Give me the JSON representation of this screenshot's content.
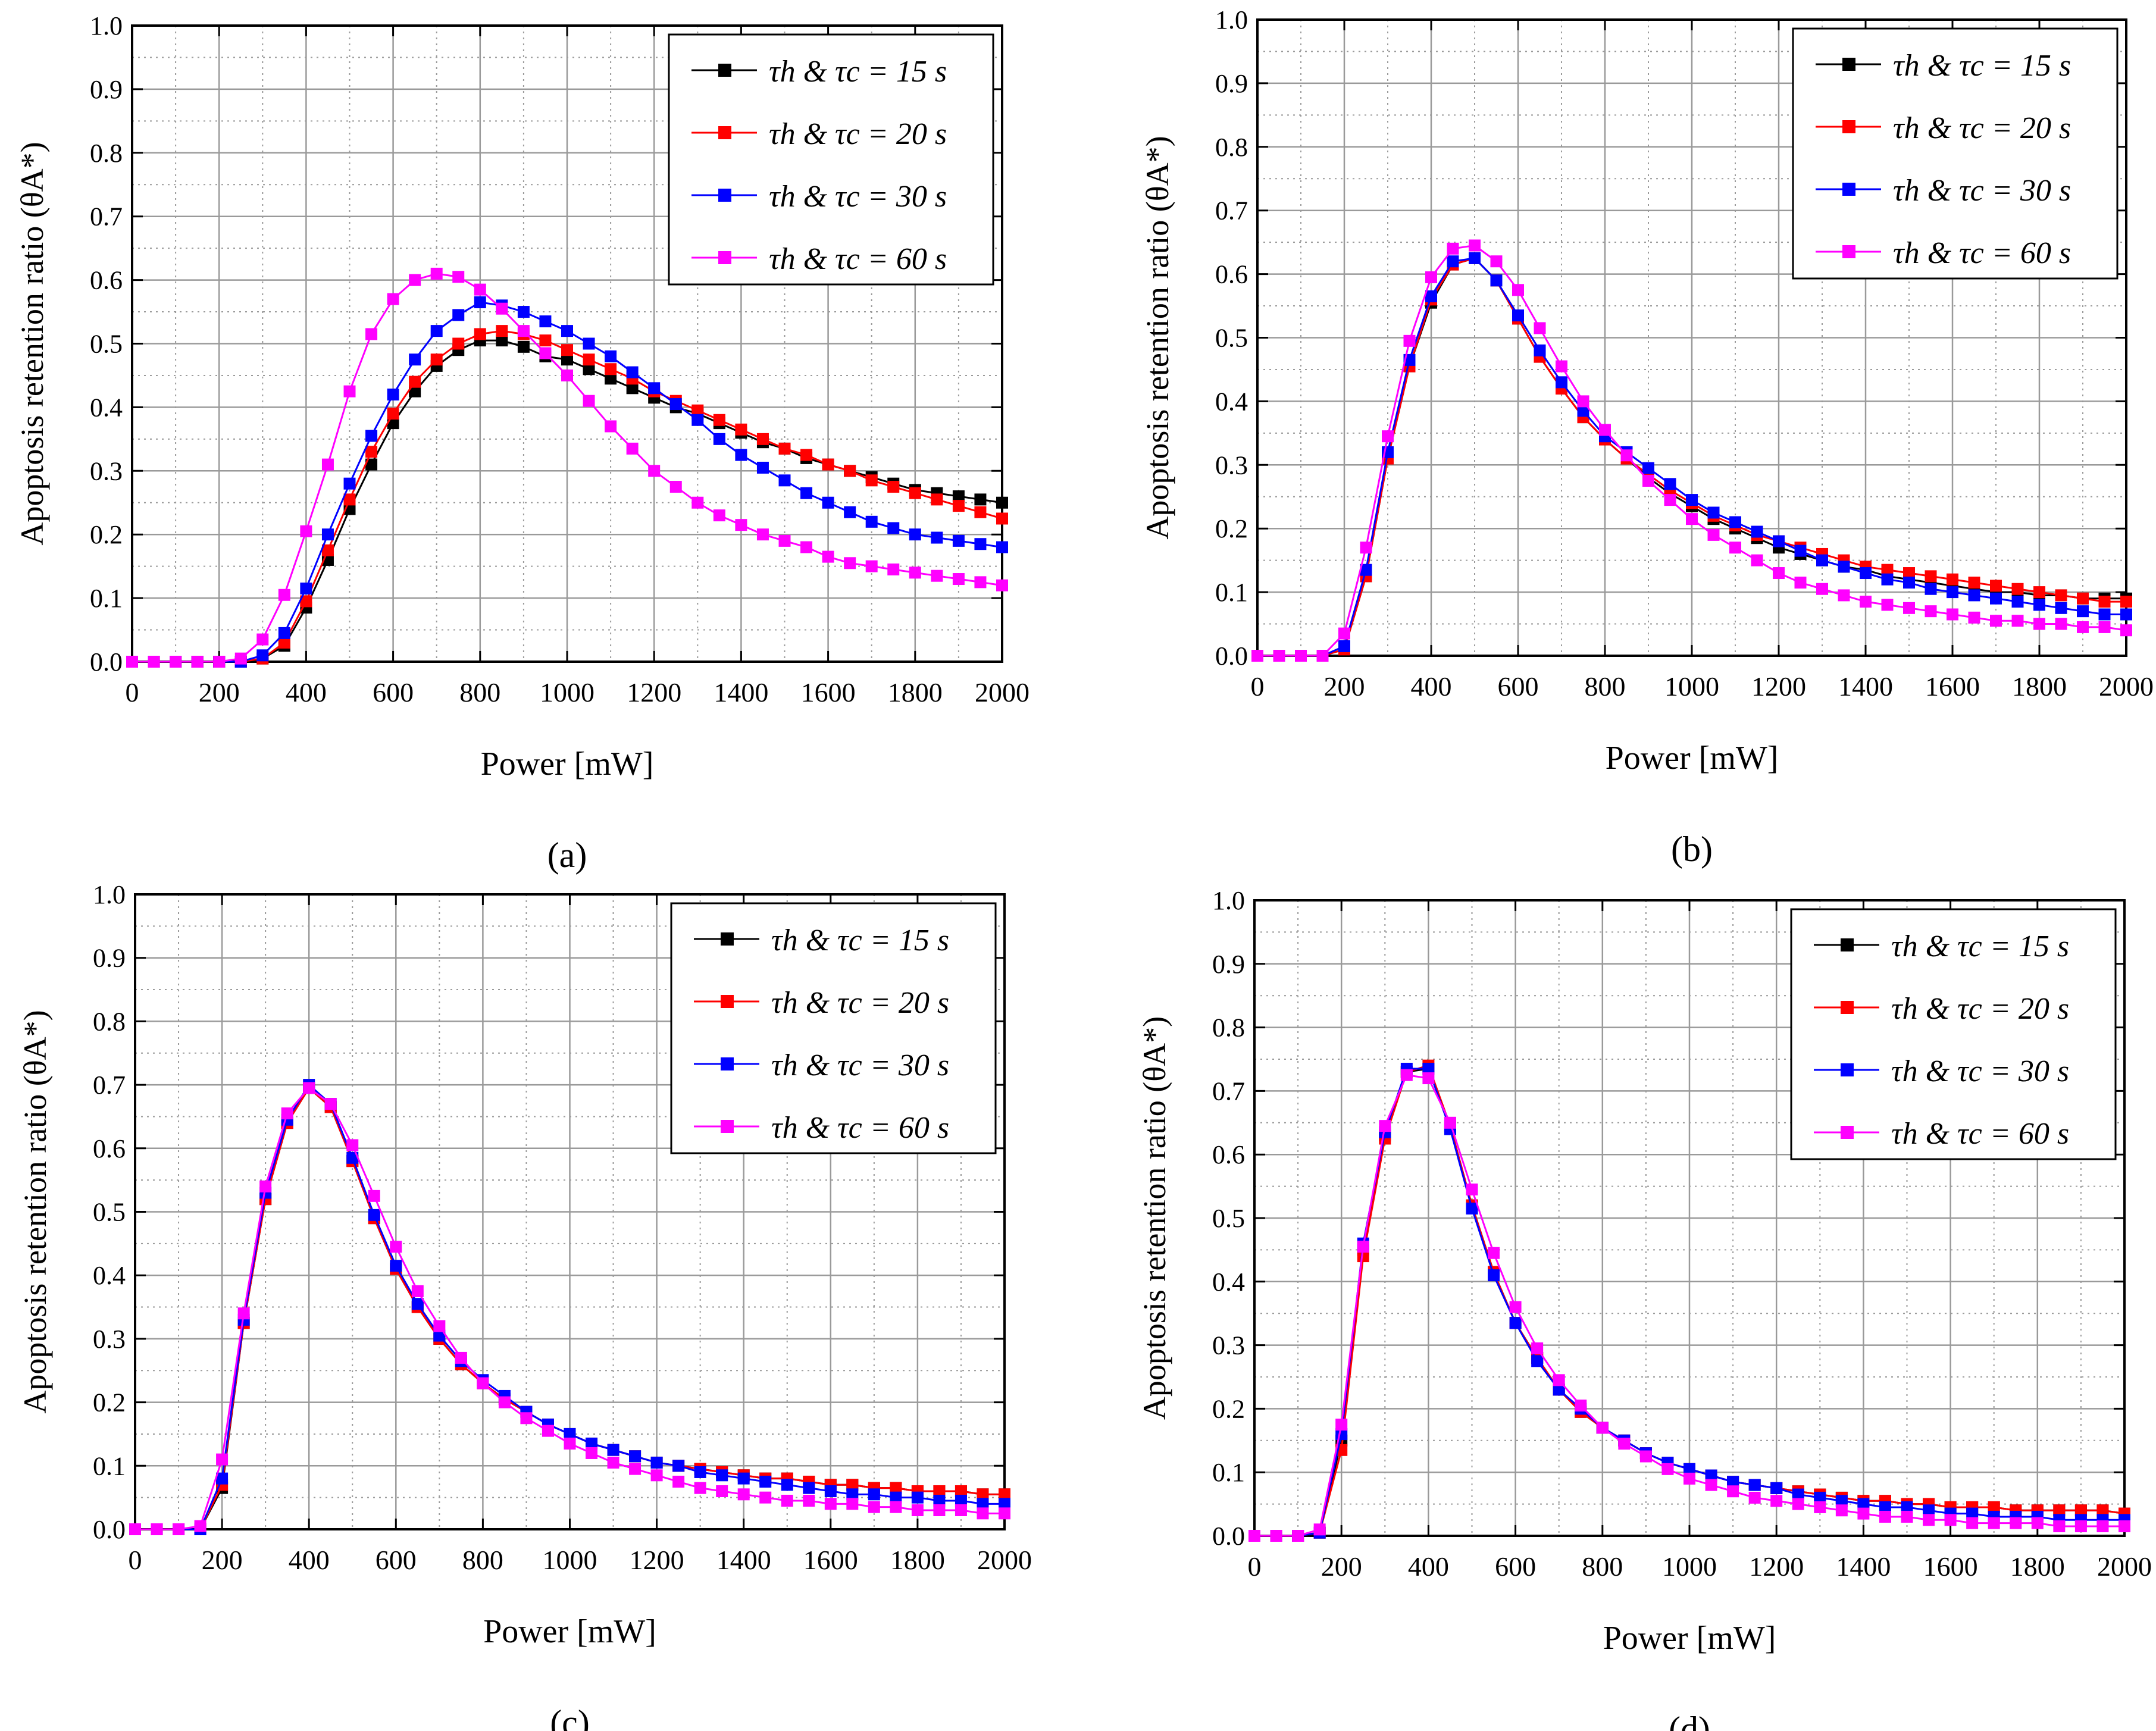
{
  "legend_prefix": "τh & τc = ",
  "colors": {
    "s15": "#000000",
    "s20": "#ff0000",
    "s30": "#0000ff",
    "s60": "#ff00ff",
    "grid": "#9a9a9a"
  },
  "chart_data": [
    {
      "type": "line",
      "panel_label": "a",
      "xlabel": "Power [mW]",
      "ylabel": "Apoptosis retention ratio (θA*)",
      "xlim": [
        0,
        2000
      ],
      "ylim": [
        0,
        1.0
      ],
      "xticks": [
        0,
        200,
        400,
        600,
        800,
        1000,
        1200,
        1400,
        1600,
        1800,
        2000
      ],
      "yticks": [
        "0.0",
        "0.1",
        "0.2",
        "0.3",
        "0.4",
        "0.5",
        "0.6",
        "0.7",
        "0.8",
        "0.9",
        "1.0"
      ],
      "legend_position": "top-right",
      "x": [
        0,
        50,
        100,
        150,
        200,
        250,
        300,
        350,
        400,
        450,
        500,
        550,
        600,
        650,
        700,
        750,
        800,
        850,
        900,
        950,
        1000,
        1050,
        1100,
        1150,
        1200,
        1250,
        1300,
        1350,
        1400,
        1450,
        1500,
        1550,
        1600,
        1650,
        1700,
        1750,
        1800,
        1850,
        1900,
        1950,
        2000
      ],
      "series": [
        {
          "name": "15 s",
          "values": [
            0,
            0,
            0,
            0,
            0,
            0,
            0.005,
            0.025,
            0.085,
            0.16,
            0.24,
            0.31,
            0.375,
            0.425,
            0.465,
            0.49,
            0.505,
            0.505,
            0.495,
            0.48,
            0.475,
            0.46,
            0.445,
            0.43,
            0.415,
            0.4,
            0.39,
            0.375,
            0.36,
            0.345,
            0.335,
            0.32,
            0.31,
            0.3,
            0.29,
            0.28,
            0.27,
            0.265,
            0.26,
            0.255,
            0.25
          ]
        },
        {
          "name": "20 s",
          "values": [
            0,
            0,
            0,
            0,
            0,
            0,
            0.005,
            0.03,
            0.095,
            0.175,
            0.255,
            0.33,
            0.39,
            0.44,
            0.475,
            0.5,
            0.515,
            0.52,
            0.515,
            0.505,
            0.49,
            0.475,
            0.46,
            0.445,
            0.425,
            0.41,
            0.395,
            0.38,
            0.365,
            0.35,
            0.335,
            0.325,
            0.31,
            0.3,
            0.285,
            0.275,
            0.265,
            0.255,
            0.245,
            0.235,
            0.225
          ]
        },
        {
          "name": "30 s",
          "values": [
            0,
            0,
            0,
            0,
            0,
            0,
            0.01,
            0.045,
            0.115,
            0.2,
            0.28,
            0.355,
            0.42,
            0.475,
            0.52,
            0.545,
            0.565,
            0.56,
            0.55,
            0.535,
            0.52,
            0.5,
            0.48,
            0.455,
            0.43,
            0.405,
            0.38,
            0.35,
            0.325,
            0.305,
            0.285,
            0.265,
            0.25,
            0.235,
            0.22,
            0.21,
            0.2,
            0.195,
            0.19,
            0.185,
            0.18
          ]
        },
        {
          "name": "60 s",
          "values": [
            0,
            0,
            0,
            0,
            0,
            0.005,
            0.035,
            0.105,
            0.205,
            0.31,
            0.425,
            0.515,
            0.57,
            0.6,
            0.61,
            0.605,
            0.585,
            0.555,
            0.52,
            0.485,
            0.45,
            0.41,
            0.37,
            0.335,
            0.3,
            0.275,
            0.25,
            0.23,
            0.215,
            0.2,
            0.19,
            0.18,
            0.165,
            0.155,
            0.15,
            0.145,
            0.14,
            0.135,
            0.13,
            0.125,
            0.12
          ]
        }
      ]
    },
    {
      "type": "line",
      "panel_label": "b",
      "xlabel": "Power [mW]",
      "ylabel": "Apoptosis retention ratio (θA*)",
      "xlim": [
        0,
        2000
      ],
      "ylim": [
        0,
        1.0
      ],
      "xticks": [
        0,
        200,
        400,
        600,
        800,
        1000,
        1200,
        1400,
        1600,
        1800,
        2000
      ],
      "yticks": [
        "0.0",
        "0.1",
        "0.2",
        "0.3",
        "0.4",
        "0.5",
        "0.6",
        "0.7",
        "0.8",
        "0.9",
        "1.0"
      ],
      "legend_position": "top-right",
      "x": [
        0,
        50,
        100,
        150,
        200,
        250,
        300,
        350,
        400,
        450,
        500,
        550,
        600,
        650,
        700,
        750,
        800,
        850,
        900,
        950,
        1000,
        1050,
        1100,
        1150,
        1200,
        1250,
        1300,
        1350,
        1400,
        1450,
        1500,
        1550,
        1600,
        1650,
        1700,
        1750,
        1800,
        1850,
        1900,
        1950,
        2000
      ],
      "series": [
        {
          "name": "15 s",
          "values": [
            0,
            0,
            0,
            0,
            0.01,
            0.125,
            0.31,
            0.455,
            0.555,
            0.615,
            0.625,
            0.59,
            0.53,
            0.47,
            0.42,
            0.375,
            0.34,
            0.31,
            0.28,
            0.255,
            0.235,
            0.215,
            0.2,
            0.185,
            0.17,
            0.16,
            0.15,
            0.14,
            0.135,
            0.125,
            0.12,
            0.115,
            0.11,
            0.105,
            0.1,
            0.1,
            0.095,
            0.095,
            0.09,
            0.09,
            0.09
          ]
        },
        {
          "name": "20 s",
          "values": [
            0,
            0,
            0,
            0,
            0.01,
            0.125,
            0.31,
            0.455,
            0.56,
            0.615,
            0.625,
            0.59,
            0.53,
            0.47,
            0.42,
            0.375,
            0.34,
            0.31,
            0.285,
            0.26,
            0.24,
            0.22,
            0.205,
            0.19,
            0.18,
            0.17,
            0.16,
            0.15,
            0.14,
            0.135,
            0.13,
            0.125,
            0.12,
            0.115,
            0.11,
            0.105,
            0.1,
            0.095,
            0.09,
            0.085,
            0.085
          ]
        },
        {
          "name": "30 s",
          "values": [
            0,
            0,
            0,
            0,
            0.015,
            0.135,
            0.32,
            0.465,
            0.565,
            0.62,
            0.625,
            0.59,
            0.535,
            0.48,
            0.43,
            0.385,
            0.345,
            0.32,
            0.295,
            0.27,
            0.245,
            0.225,
            0.21,
            0.195,
            0.18,
            0.165,
            0.15,
            0.14,
            0.13,
            0.12,
            0.115,
            0.105,
            0.1,
            0.095,
            0.09,
            0.085,
            0.08,
            0.075,
            0.07,
            0.065,
            0.065
          ]
        },
        {
          "name": "60 s",
          "values": [
            0,
            0,
            0,
            0,
            0.035,
            0.17,
            0.345,
            0.495,
            0.595,
            0.64,
            0.645,
            0.62,
            0.575,
            0.515,
            0.455,
            0.4,
            0.355,
            0.315,
            0.275,
            0.245,
            0.215,
            0.19,
            0.17,
            0.15,
            0.13,
            0.115,
            0.105,
            0.095,
            0.085,
            0.08,
            0.075,
            0.07,
            0.065,
            0.06,
            0.055,
            0.055,
            0.05,
            0.05,
            0.045,
            0.045,
            0.04
          ]
        }
      ]
    },
    {
      "type": "line",
      "panel_label": "c",
      "xlabel": "Power [mW]",
      "ylabel": "Apoptosis retention ratio (θA*)",
      "xlim": [
        0,
        2000
      ],
      "ylim": [
        0,
        1.0
      ],
      "xticks": [
        0,
        200,
        400,
        600,
        800,
        1000,
        1200,
        1400,
        1600,
        1800,
        2000
      ],
      "yticks": [
        "0.0",
        "0.1",
        "0.2",
        "0.3",
        "0.4",
        "0.5",
        "0.6",
        "0.7",
        "0.8",
        "0.9",
        "1.0"
      ],
      "legend_position": "top-right",
      "x": [
        0,
        50,
        100,
        150,
        200,
        250,
        300,
        350,
        400,
        450,
        500,
        550,
        600,
        650,
        700,
        750,
        800,
        850,
        900,
        950,
        1000,
        1050,
        1100,
        1150,
        1200,
        1250,
        1300,
        1350,
        1400,
        1450,
        1500,
        1550,
        1600,
        1650,
        1700,
        1750,
        1800,
        1850,
        1900,
        1950,
        2000
      ],
      "series": [
        {
          "name": "15 s",
          "values": [
            0,
            0,
            0,
            0,
            0.065,
            0.325,
            0.52,
            0.64,
            0.695,
            0.665,
            0.58,
            0.49,
            0.41,
            0.35,
            0.3,
            0.26,
            0.23,
            0.205,
            0.185,
            0.165,
            0.15,
            0.135,
            0.125,
            0.115,
            0.105,
            0.1,
            0.095,
            0.09,
            0.085,
            0.08,
            0.08,
            0.075,
            0.07,
            0.07,
            0.065,
            0.065,
            0.06,
            0.06,
            0.06,
            0.055,
            0.055
          ]
        },
        {
          "name": "20 s",
          "values": [
            0,
            0,
            0,
            0,
            0.07,
            0.325,
            0.52,
            0.64,
            0.695,
            0.665,
            0.58,
            0.49,
            0.41,
            0.35,
            0.3,
            0.26,
            0.23,
            0.205,
            0.185,
            0.165,
            0.15,
            0.135,
            0.125,
            0.115,
            0.105,
            0.1,
            0.095,
            0.09,
            0.085,
            0.08,
            0.08,
            0.075,
            0.07,
            0.07,
            0.065,
            0.065,
            0.06,
            0.06,
            0.06,
            0.055,
            0.055
          ]
        },
        {
          "name": "30 s",
          "values": [
            0,
            0,
            0,
            0,
            0.08,
            0.33,
            0.53,
            0.645,
            0.7,
            0.67,
            0.585,
            0.495,
            0.415,
            0.355,
            0.305,
            0.265,
            0.235,
            0.21,
            0.185,
            0.165,
            0.15,
            0.135,
            0.125,
            0.115,
            0.105,
            0.1,
            0.09,
            0.085,
            0.08,
            0.075,
            0.07,
            0.065,
            0.06,
            0.055,
            0.055,
            0.05,
            0.05,
            0.045,
            0.045,
            0.04,
            0.04
          ]
        },
        {
          "name": "60 s",
          "values": [
            0,
            0,
            0,
            0.005,
            0.11,
            0.34,
            0.54,
            0.655,
            0.695,
            0.67,
            0.605,
            0.525,
            0.445,
            0.375,
            0.32,
            0.27,
            0.23,
            0.2,
            0.175,
            0.155,
            0.135,
            0.12,
            0.105,
            0.095,
            0.085,
            0.075,
            0.065,
            0.06,
            0.055,
            0.05,
            0.045,
            0.045,
            0.04,
            0.04,
            0.035,
            0.035,
            0.03,
            0.03,
            0.03,
            0.025,
            0.025
          ]
        }
      ]
    },
    {
      "type": "line",
      "panel_label": "d",
      "xlabel": "Power [mW]",
      "ylabel": "Apoptosis retention ratio (θA*)",
      "xlim": [
        0,
        2000
      ],
      "ylim": [
        0,
        1.0
      ],
      "xticks": [
        0,
        200,
        400,
        600,
        800,
        1000,
        1200,
        1400,
        1600,
        1800,
        2000
      ],
      "yticks": [
        "0.0",
        "0.1",
        "0.2",
        "0.3",
        "0.4",
        "0.5",
        "0.6",
        "0.7",
        "0.8",
        "0.9",
        "1.0"
      ],
      "legend_position": "top-right",
      "x": [
        0,
        50,
        100,
        150,
        200,
        250,
        300,
        350,
        400,
        450,
        500,
        550,
        600,
        650,
        700,
        750,
        800,
        850,
        900,
        950,
        1000,
        1050,
        1100,
        1150,
        1200,
        1250,
        1300,
        1350,
        1400,
        1450,
        1500,
        1550,
        1600,
        1650,
        1700,
        1750,
        1800,
        1850,
        1900,
        1950,
        2000
      ],
      "series": [
        {
          "name": "15 s",
          "values": [
            0,
            0,
            0,
            0.005,
            0.15,
            0.45,
            0.63,
            0.73,
            0.735,
            0.645,
            0.52,
            0.415,
            0.335,
            0.28,
            0.23,
            0.195,
            0.17,
            0.15,
            0.13,
            0.115,
            0.105,
            0.095,
            0.085,
            0.08,
            0.075,
            0.07,
            0.065,
            0.06,
            0.055,
            0.055,
            0.05,
            0.05,
            0.045,
            0.045,
            0.045,
            0.04,
            0.04,
            0.04,
            0.04,
            0.04,
            0.035
          ]
        },
        {
          "name": "20 s",
          "values": [
            0,
            0,
            0,
            0.005,
            0.135,
            0.44,
            0.625,
            0.73,
            0.74,
            0.645,
            0.52,
            0.415,
            0.335,
            0.28,
            0.23,
            0.195,
            0.17,
            0.15,
            0.13,
            0.115,
            0.105,
            0.095,
            0.085,
            0.08,
            0.075,
            0.07,
            0.065,
            0.06,
            0.055,
            0.055,
            0.05,
            0.05,
            0.045,
            0.045,
            0.045,
            0.04,
            0.04,
            0.04,
            0.04,
            0.04,
            0.035
          ]
        },
        {
          "name": "30 s",
          "values": [
            0,
            0,
            0,
            0.005,
            0.16,
            0.46,
            0.635,
            0.735,
            0.735,
            0.64,
            0.515,
            0.41,
            0.335,
            0.275,
            0.23,
            0.2,
            0.17,
            0.15,
            0.13,
            0.115,
            0.105,
            0.095,
            0.085,
            0.08,
            0.075,
            0.065,
            0.06,
            0.055,
            0.05,
            0.045,
            0.045,
            0.04,
            0.035,
            0.035,
            0.03,
            0.03,
            0.03,
            0.025,
            0.025,
            0.025,
            0.025
          ]
        },
        {
          "name": "60 s",
          "values": [
            0,
            0,
            0,
            0.01,
            0.175,
            0.455,
            0.645,
            0.725,
            0.72,
            0.65,
            0.545,
            0.445,
            0.36,
            0.295,
            0.245,
            0.205,
            0.17,
            0.145,
            0.125,
            0.105,
            0.09,
            0.08,
            0.07,
            0.06,
            0.055,
            0.05,
            0.045,
            0.04,
            0.035,
            0.03,
            0.03,
            0.025,
            0.025,
            0.02,
            0.02,
            0.02,
            0.02,
            0.015,
            0.015,
            0.015,
            0.015
          ]
        }
      ]
    }
  ]
}
